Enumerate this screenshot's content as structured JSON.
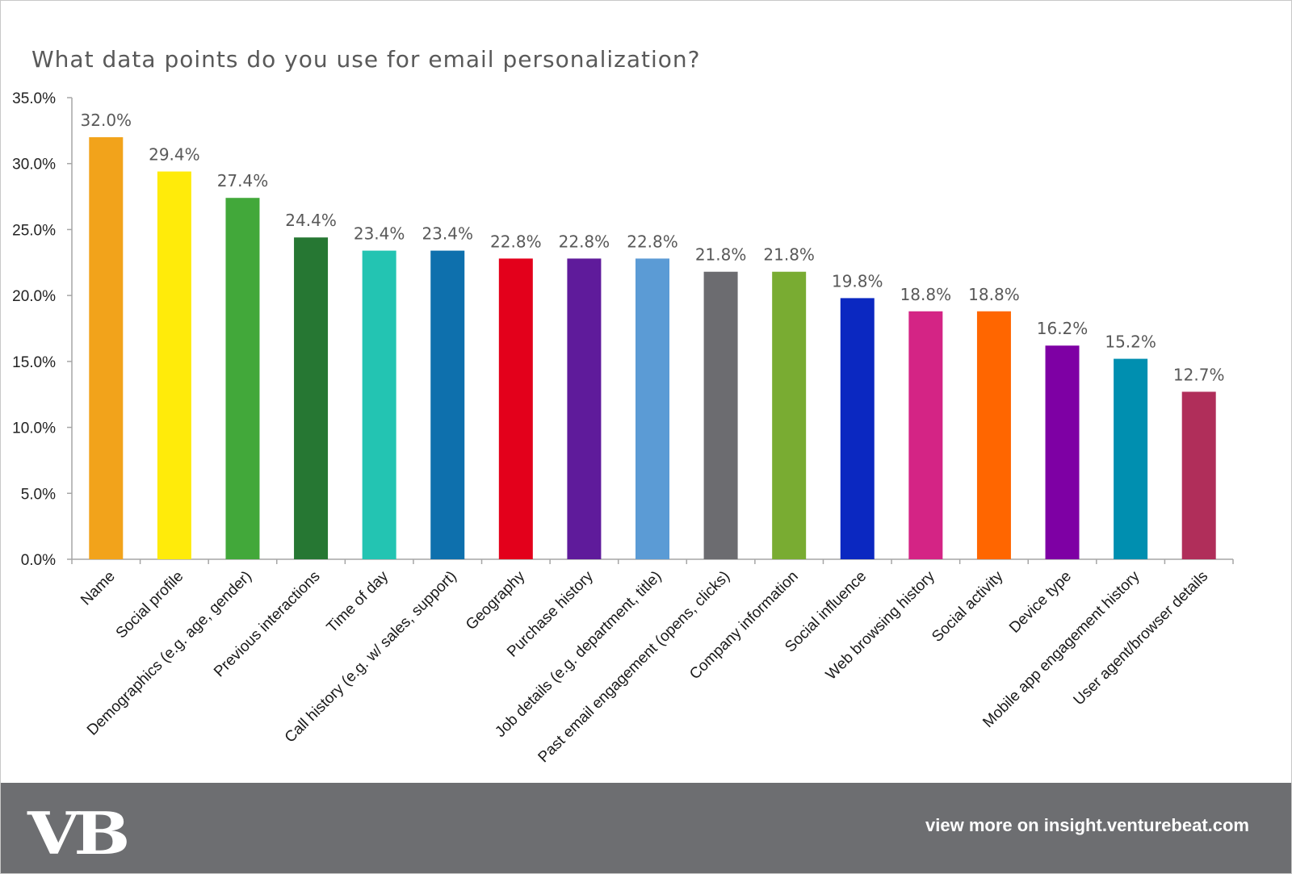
{
  "chart_data": {
    "type": "bar",
    "title": "What data points do you use for email personalization?",
    "xlabel": "",
    "ylabel": "",
    "ylim": [
      0,
      35
    ],
    "yticks": [
      "0.0%",
      "5.0%",
      "10.0%",
      "15.0%",
      "20.0%",
      "25.0%",
      "30.0%",
      "35.0%"
    ],
    "grid": false,
    "legend": "none",
    "categories": [
      "Name",
      "Social profile",
      "Demographics (e.g. age, gender)",
      "Previous interactions",
      "Time of day",
      "Call history (e.g. w/ sales, support)",
      "Geography",
      "Purchase history",
      "Job details (e.g. department, title)",
      "Past email engagement (opens, clicks)",
      "Company information",
      "Social influence",
      "Web browsing history",
      "Social activity",
      "Device type",
      "Mobile app engagement history",
      "User agent/browser details"
    ],
    "values": [
      32.0,
      29.4,
      27.4,
      24.4,
      23.4,
      23.4,
      22.8,
      22.8,
      22.8,
      21.8,
      21.8,
      19.8,
      18.8,
      18.8,
      16.2,
      15.2,
      12.7
    ],
    "data_labels": [
      "32.0%",
      "29.4%",
      "27.4%",
      "24.4%",
      "23.4%",
      "23.4%",
      "22.8%",
      "22.8%",
      "22.8%",
      "21.8%",
      "21.8%",
      "19.8%",
      "18.8%",
      "18.8%",
      "16.2%",
      "15.2%",
      "12.7%"
    ],
    "colors": [
      "#f2a31b",
      "#ffeb0a",
      "#42a83a",
      "#267733",
      "#23c4b2",
      "#0e70ad",
      "#e3001b",
      "#5f1b9b",
      "#5b9bd5",
      "#6c6c70",
      "#79ac32",
      "#0b28c1",
      "#d42485",
      "#ff6600",
      "#7e00a4",
      "#008fb0",
      "#b02e5a"
    ]
  },
  "footer": {
    "logo": "VB",
    "link": "view more on insight.venturebeat.com",
    "background": "#6d6e71"
  }
}
